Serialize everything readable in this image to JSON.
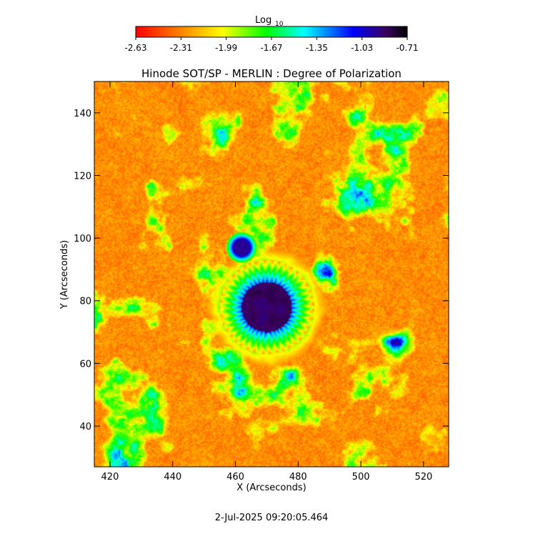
{
  "chart_data": {
    "type": "heatmap",
    "title": "Hinode SOT/SP - MERLIN : Degree of Polarization",
    "xlabel": "X (Arcseconds)",
    "ylabel": "Y (Arcseconds)",
    "xlim": [
      415,
      528
    ],
    "ylim": [
      27,
      150
    ],
    "x_ticks": [
      420,
      440,
      460,
      480,
      500,
      520
    ],
    "y_ticks": [
      40,
      60,
      80,
      100,
      120,
      140
    ],
    "colorbar": {
      "label_main": "Log",
      "label_sub": "10",
      "range": [
        -2.63,
        -0.71
      ],
      "tick_labels": [
        "-2.63",
        "-2.31",
        "-1.99",
        "-1.67",
        "-1.35",
        "-1.03",
        "-0.71"
      ],
      "colormap": [
        "#ff0000",
        "#ff7f00",
        "#ffff00",
        "#00ff00",
        "#00ffff",
        "#0000ff",
        "#000000"
      ]
    },
    "features": [
      {
        "kind": "sunspot",
        "center": [
          470,
          78
        ],
        "umbra_radius": 7,
        "penumbra_radius": 13
      },
      {
        "kind": "pore",
        "center": [
          462,
          97
        ],
        "radius": 2.5
      }
    ],
    "grid": false
  },
  "footer": {
    "timestamp": "2-Jul-2025 09:20:05.464"
  }
}
